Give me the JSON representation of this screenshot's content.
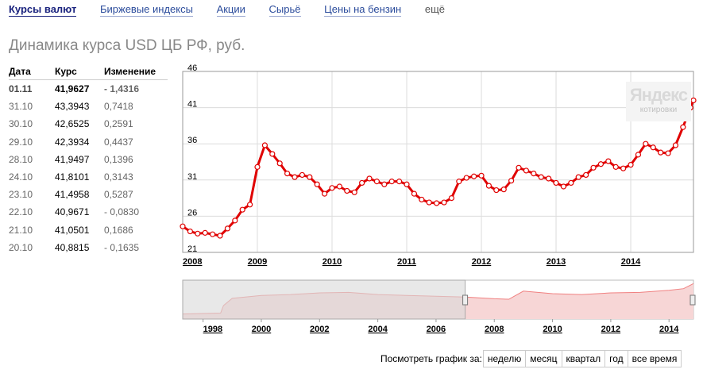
{
  "tabs": [
    {
      "label": "Курсы валют",
      "active": true
    },
    {
      "label": "Биржевые индексы",
      "active": false
    },
    {
      "label": "Акции",
      "active": false
    },
    {
      "label": "Сырьё",
      "active": false
    },
    {
      "label": "Цены на бензин",
      "active": false
    },
    {
      "label": "ещё",
      "active": false
    }
  ],
  "title": "Динамика курса USD ЦБ РФ, руб.",
  "table": {
    "headers": [
      "Дата",
      "Курс",
      "Изменение"
    ],
    "rows": [
      [
        "01.11",
        "41,9627",
        "- 1,4316"
      ],
      [
        "31.10",
        "43,3943",
        "0,7418"
      ],
      [
        "30.10",
        "42,6525",
        "0,2591"
      ],
      [
        "29.10",
        "42,3934",
        "0,4437"
      ],
      [
        "28.10",
        "41,9497",
        "0,1396"
      ],
      [
        "24.10",
        "41,8101",
        "0,3143"
      ],
      [
        "23.10",
        "41,4958",
        "0,5287"
      ],
      [
        "22.10",
        "40,9671",
        "- 0,0830"
      ],
      [
        "21.10",
        "41,0501",
        "0,1686"
      ],
      [
        "20.10",
        "40,8815",
        "- 0,1635"
      ]
    ]
  },
  "watermark": {
    "logo": "Яндекс",
    "sub": "котировки"
  },
  "period": {
    "label": "Посмотреть график за:",
    "buttons": [
      "неделю",
      "месяц",
      "квартал",
      "год",
      "все время"
    ]
  },
  "colors": {
    "line": "#e00000",
    "fill": "#f7d6d6",
    "selection": "#e6e6e6",
    "link": "#2a4b9b"
  },
  "chart_data": [
    {
      "type": "line",
      "title": "",
      "ylim": [
        21,
        46
      ],
      "yticks": [
        "46",
        "41",
        "36",
        "31",
        "26",
        "21"
      ],
      "xlim": [
        2008.0,
        2014.84
      ],
      "xticks": [
        "2008",
        "2009",
        "2010",
        "2011",
        "2012",
        "2013",
        "2014"
      ],
      "grid": true,
      "x": [
        2008.0,
        2008.1,
        2008.2,
        2008.3,
        2008.4,
        2008.5,
        2008.6,
        2008.7,
        2008.8,
        2008.9,
        2009.0,
        2009.1,
        2009.2,
        2009.3,
        2009.4,
        2009.5,
        2009.6,
        2009.7,
        2009.8,
        2009.9,
        2010.0,
        2010.1,
        2010.2,
        2010.3,
        2010.4,
        2010.5,
        2010.6,
        2010.7,
        2010.8,
        2010.9,
        2011.0,
        2011.1,
        2011.2,
        2011.3,
        2011.4,
        2011.5,
        2011.6,
        2011.7,
        2011.8,
        2011.9,
        2012.0,
        2012.1,
        2012.2,
        2012.3,
        2012.4,
        2012.5,
        2012.6,
        2012.7,
        2012.8,
        2012.9,
        2013.0,
        2013.1,
        2013.2,
        2013.3,
        2013.4,
        2013.5,
        2013.6,
        2013.7,
        2013.8,
        2013.9,
        2014.0,
        2014.1,
        2014.2,
        2014.3,
        2014.4,
        2014.5,
        2014.6,
        2014.7,
        2014.8,
        2014.84
      ],
      "series": [
        {
          "values": [
            24.6,
            23.9,
            23.6,
            23.7,
            23.5,
            23.3,
            24.3,
            25.4,
            26.9,
            27.6,
            32.8,
            35.8,
            34.6,
            33.3,
            31.9,
            31.4,
            31.7,
            31.4,
            30.4,
            29.1,
            29.9,
            30.1,
            29.5,
            29.3,
            30.6,
            31.2,
            30.8,
            30.4,
            30.8,
            30.8,
            30.4,
            29.1,
            28.3,
            27.9,
            27.8,
            27.9,
            28.5,
            30.8,
            31.3,
            31.5,
            31.6,
            30.2,
            29.6,
            29.7,
            30.9,
            32.7,
            32.3,
            31.9,
            31.4,
            31.2,
            30.6,
            30.1,
            30.6,
            31.4,
            31.7,
            32.7,
            33.2,
            33.6,
            32.8,
            32.6,
            33.1,
            34.5,
            36.0,
            35.5,
            34.8,
            34.7,
            35.8,
            38.3,
            41.0,
            42.0
          ]
        }
      ]
    },
    {
      "type": "area",
      "title": "",
      "xlim": [
        1997.3,
        2014.84
      ],
      "xticks": [
        "1998",
        "2000",
        "2002",
        "2004",
        "2006",
        "2008",
        "2010",
        "2012",
        "2014"
      ],
      "selection": [
        1997.3,
        2007.0
      ],
      "x": [
        1997.3,
        1998.6,
        1998.7,
        1999.0,
        2000.0,
        2001.0,
        2002.0,
        2003.0,
        2004.0,
        2005.0,
        2006.0,
        2007.0,
        2008.0,
        2008.5,
        2009.0,
        2009.5,
        2010.0,
        2011.0,
        2012.0,
        2013.0,
        2014.0,
        2014.5,
        2014.84
      ],
      "series": [
        {
          "values": [
            6.0,
            7.0,
            16.0,
            24.5,
            28.0,
            29.0,
            31.0,
            31.5,
            29.0,
            28.0,
            27.0,
            26.0,
            24.0,
            23.5,
            33.0,
            31.5,
            30.0,
            29.0,
            31.0,
            31.5,
            34.0,
            36.0,
            42.0
          ]
        }
      ]
    }
  ]
}
